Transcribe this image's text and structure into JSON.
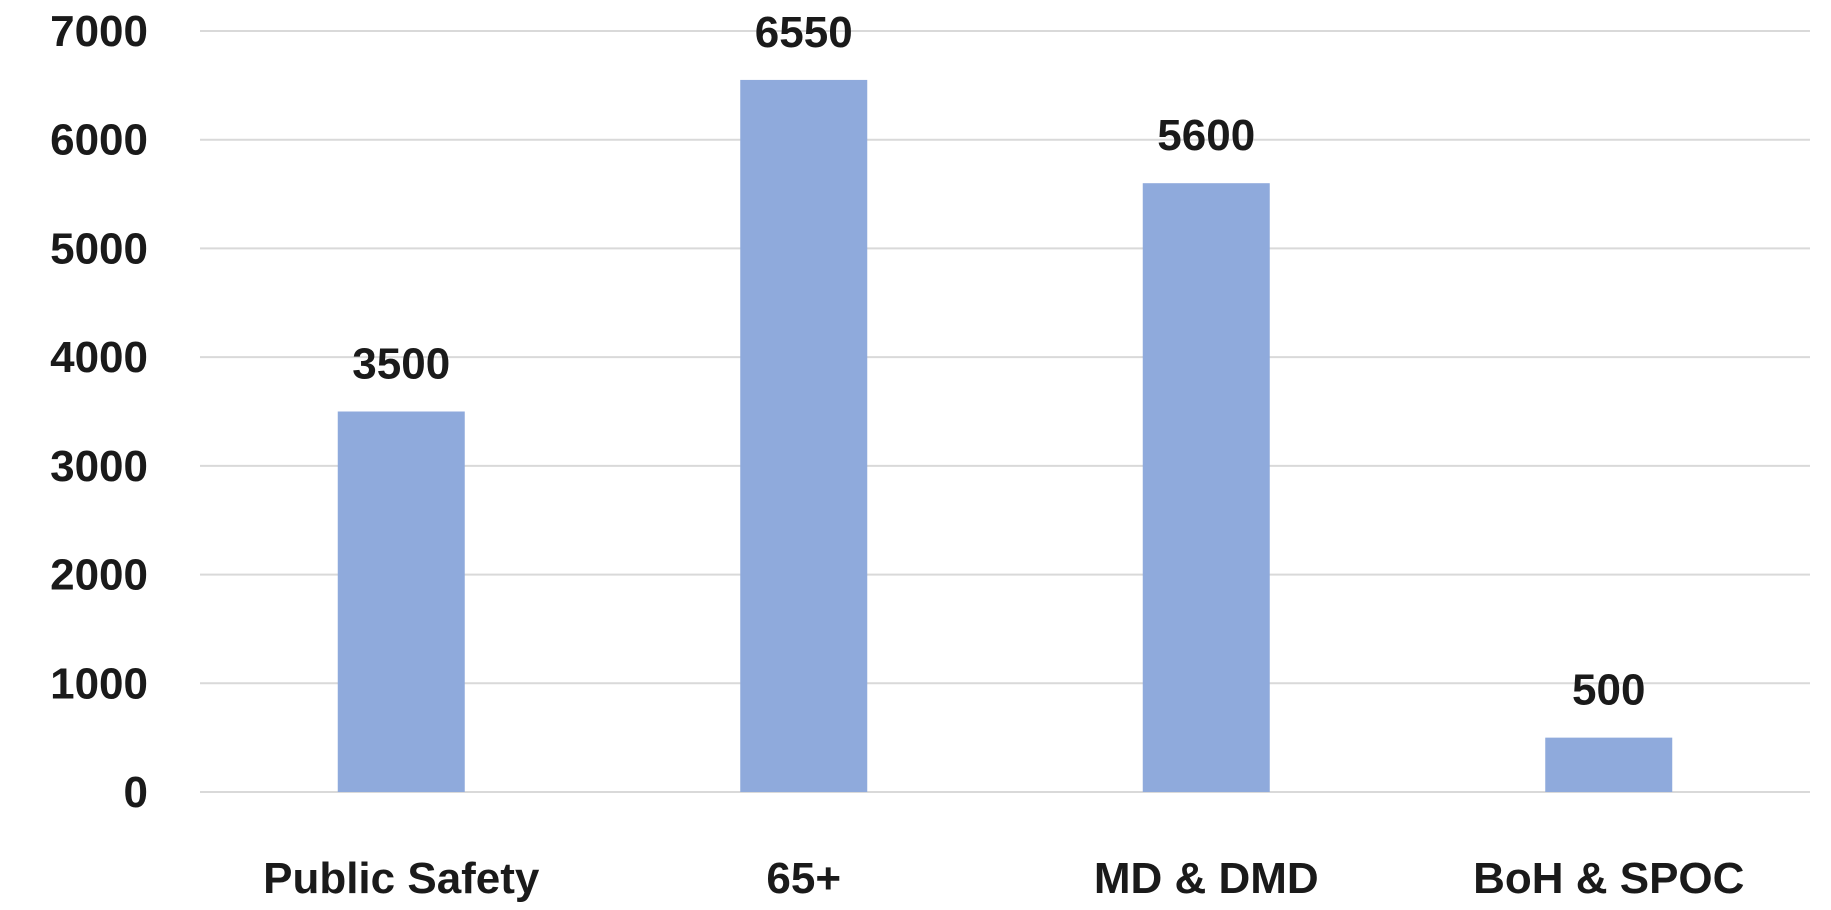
{
  "chart_data": {
    "type": "bar",
    "title": "",
    "xlabel": "",
    "ylabel": "",
    "categories": [
      "Public Safety",
      "65+",
      "MD & DMD",
      "BoH & SPOC"
    ],
    "values": [
      3500,
      6550,
      5600,
      500
    ],
    "data_labels": [
      "3500",
      "6550",
      "5600",
      "500"
    ],
    "ylim": [
      0,
      7000
    ],
    "yticks": [
      0,
      1000,
      2000,
      3000,
      4000,
      5000,
      6000,
      7000
    ],
    "ytick_labels": [
      "0",
      "1000",
      "2000",
      "3000",
      "4000",
      "5000",
      "6000",
      "7000"
    ],
    "grid": true,
    "legend": "none",
    "bar_color": "#8faadc",
    "gridline_color": "#d9d9d9"
  }
}
